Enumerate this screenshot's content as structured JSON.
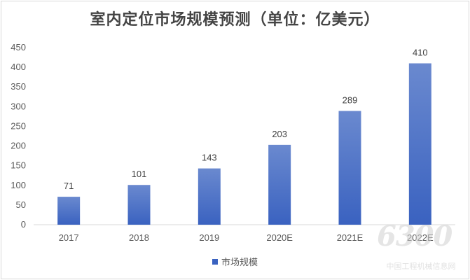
{
  "chart_data": {
    "type": "bar",
    "title": "室内定位市场规模预测（单位：亿美元）",
    "categories": [
      "2017",
      "2018",
      "2019",
      "2020E",
      "2021E",
      "2022E"
    ],
    "series": [
      {
        "name": "市场规模",
        "values": [
          71,
          101,
          143,
          203,
          289,
          410
        ]
      }
    ],
    "ylim": [
      0,
      450
    ],
    "yticks": [
      0,
      50,
      100,
      150,
      200,
      250,
      300,
      350,
      400,
      450
    ],
    "data_labels": true,
    "grid": false,
    "legend_position": "bottom",
    "bar_color_top": "#6a89cf",
    "bar_color_bottom": "#3a62c0"
  },
  "watermark": {
    "logo_text": "6300",
    "caption": "中国工程机械信息网"
  }
}
